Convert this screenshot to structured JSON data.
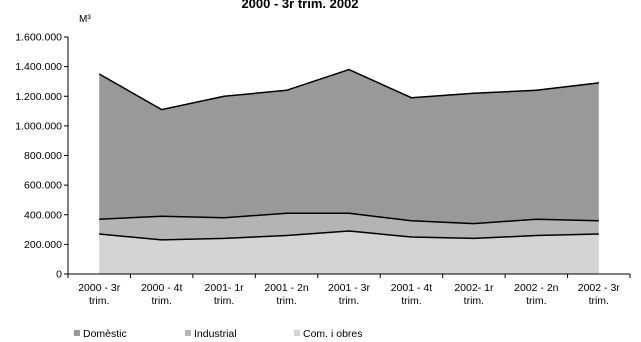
{
  "chart_data": {
    "type": "area",
    "stacked": true,
    "title": "2000 - 3r trim. 2002",
    "unit_label": "M³",
    "xlabel": "",
    "ylabel": "",
    "ylim": [
      0,
      1600000
    ],
    "y_ticks": [
      "0",
      "200.000",
      "400.000",
      "600.000",
      "800.000",
      "1.000.000",
      "1.200.000",
      "1.400.000",
      "1.600.000"
    ],
    "y_tick_values": [
      0,
      200000,
      400000,
      600000,
      800000,
      1000000,
      1200000,
      1400000,
      1600000
    ],
    "categories": [
      [
        "2000 - 3r",
        "trim."
      ],
      [
        "2000 - 4t",
        "trim."
      ],
      [
        "2001- 1r",
        "trim."
      ],
      [
        "2001 - 2n",
        "trim."
      ],
      [
        "2001 - 3r",
        "trim."
      ],
      [
        "2001 - 4t",
        "trim."
      ],
      [
        "2002- 1r",
        "trim."
      ],
      [
        "2002 - 2n",
        "trim."
      ],
      [
        "2002 - 3r",
        "trim."
      ]
    ],
    "series": [
      {
        "name": "Com. i obres",
        "color": "#d4d4d4",
        "values": [
          270000,
          230000,
          240000,
          260000,
          290000,
          250000,
          240000,
          260000,
          270000
        ]
      },
      {
        "name": "Industrial",
        "color": "#b4b4b4",
        "values": [
          100000,
          160000,
          140000,
          150000,
          120000,
          110000,
          100000,
          110000,
          90000
        ]
      },
      {
        "name": "Domèstic",
        "color": "#999999",
        "values": [
          980000,
          720000,
          820000,
          830000,
          970000,
          830000,
          880000,
          870000,
          930000
        ]
      }
    ],
    "legend_order": [
      2,
      1,
      0
    ],
    "legend_position": "bottom",
    "grid": false
  }
}
